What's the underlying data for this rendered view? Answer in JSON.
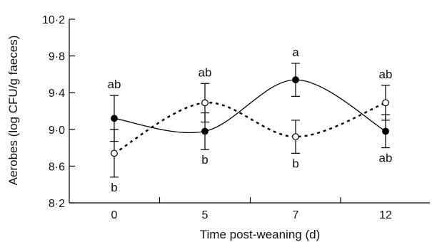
{
  "chart_data": {
    "type": "line",
    "xlabel": "Time post-weaning (d)",
    "ylabel": "Aerobes (log CFU/g faeces)",
    "x_categories": [
      "0",
      "5",
      "7",
      "12"
    ],
    "ylim": [
      8.2,
      10.2
    ],
    "yticks": [
      8.2,
      8.6,
      9.0,
      9.4,
      9.8,
      10.2
    ],
    "ytick_labels": [
      "8·2",
      "8·6",
      "9·0",
      "9·4",
      "9·8",
      "10·2"
    ],
    "grid": false,
    "legend": "none",
    "series": [
      {
        "marker": "filled-circle",
        "line_style": "solid",
        "color": "#000000",
        "values": [
          9.12,
          8.98,
          9.54,
          8.98
        ],
        "errors": [
          0.25,
          0.2,
          0.18,
          0.18
        ],
        "labels": [
          "ab",
          "b",
          "a",
          "ab"
        ],
        "label_positions": [
          "above",
          "below",
          "above",
          "below"
        ]
      },
      {
        "marker": "open-circle",
        "line_style": "dashed",
        "color": "#000000",
        "values": [
          8.74,
          9.29,
          8.92,
          9.29
        ],
        "errors": [
          0.26,
          0.21,
          0.18,
          0.19
        ],
        "labels": [
          "b",
          "ab",
          "b",
          "ab"
        ],
        "label_positions": [
          "below",
          "above",
          "below",
          "above"
        ]
      }
    ]
  }
}
